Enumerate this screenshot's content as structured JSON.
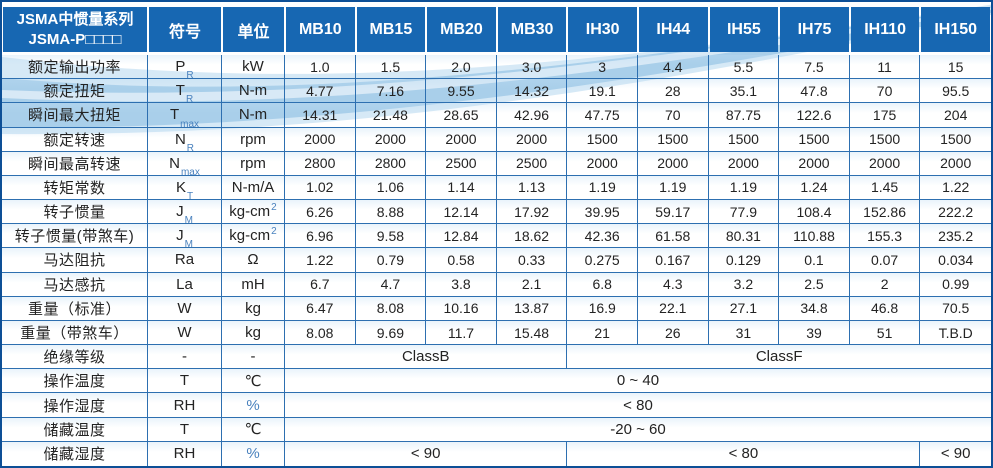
{
  "colors": {
    "header_blue": "#1767b2",
    "outer_border": "#0d4f96",
    "grid_line": "#2d6fb0",
    "wave_light": "#d4e8f6",
    "wave_mid": "#9dc8e7",
    "subscript_blue": "#4a82be"
  },
  "table": {
    "header": {
      "title_line1": "JSMA中惯量系列",
      "title_line2": "JSMA-P□□□□",
      "symbol_label": "符号",
      "unit_label": "单位",
      "models": [
        "MB10",
        "MB15",
        "MB20",
        "MB30",
        "IH30",
        "IH44",
        "IH55",
        "IH75",
        "IH110",
        "IH150"
      ]
    },
    "rows": [
      {
        "label": "额定输出功率",
        "symbol": "P",
        "sub": "R",
        "unit": "kW",
        "values": [
          "1.0",
          "1.5",
          "2.0",
          "3.0",
          "3",
          "4.4",
          "5.5",
          "7.5",
          "11",
          "15"
        ]
      },
      {
        "label": "额定扭矩",
        "symbol": "T",
        "sub": "R",
        "unit": "N-m",
        "values": [
          "4.77",
          "7.16",
          "9.55",
          "14.32",
          "19.1",
          "28",
          "35.1",
          "47.8",
          "70",
          "95.5"
        ]
      },
      {
        "label": "瞬间最大扭矩",
        "symbol": "T",
        "sub": "max",
        "unit": "N-m",
        "values": [
          "14.31",
          "21.48",
          "28.65",
          "42.96",
          "47.75",
          "70",
          "87.75",
          "122.6",
          "175",
          "204"
        ]
      },
      {
        "label": "额定转速",
        "symbol": "N",
        "sub": "R",
        "unit": "rpm",
        "values": [
          "2000",
          "2000",
          "2000",
          "2000",
          "1500",
          "1500",
          "1500",
          "1500",
          "1500",
          "1500"
        ]
      },
      {
        "label": "瞬间最高转速",
        "symbol": "N",
        "sub": "max",
        "unit": "rpm",
        "values": [
          "2800",
          "2800",
          "2500",
          "2500",
          "2000",
          "2000",
          "2000",
          "2000",
          "2000",
          "2000"
        ]
      },
      {
        "label": "转矩常数",
        "symbol": "K",
        "sub": "T",
        "unit": "N-m/A",
        "values": [
          "1.02",
          "1.06",
          "1.14",
          "1.13",
          "1.19",
          "1.19",
          "1.19",
          "1.24",
          "1.45",
          "1.22"
        ]
      },
      {
        "label": "转子惯量",
        "symbol": "J",
        "sub": "M",
        "unit": "kg-cm",
        "unit_sup": "2",
        "values": [
          "6.26",
          "8.88",
          "12.14",
          "17.92",
          "39.95",
          "59.17",
          "77.9",
          "108.4",
          "152.86",
          "222.2"
        ]
      },
      {
        "label": "转子惯量(带煞车)",
        "symbol": "J",
        "sub": "M",
        "unit": "kg-cm",
        "unit_sup": "2",
        "values": [
          "6.96",
          "9.58",
          "12.84",
          "18.62",
          "42.36",
          "61.58",
          "80.31",
          "110.88",
          "155.3",
          "235.2"
        ]
      },
      {
        "label": "马达阻抗",
        "symbol": "Ra",
        "sub": "",
        "unit": "Ω",
        "values": [
          "1.22",
          "0.79",
          "0.58",
          "0.33",
          "0.275",
          "0.167",
          "0.129",
          "0.1",
          "0.07",
          "0.034"
        ]
      },
      {
        "label": "马达感抗",
        "symbol": "La",
        "sub": "",
        "unit": "mH",
        "values": [
          "6.7",
          "4.7",
          "3.8",
          "2.1",
          "6.8",
          "4.3",
          "3.2",
          "2.5",
          "2",
          "0.99"
        ]
      },
      {
        "label": "重量（标准）",
        "symbol": "W",
        "sub": "",
        "unit": "kg",
        "values": [
          "6.47",
          "8.08",
          "10.16",
          "13.87",
          "16.9",
          "22.1",
          "27.1",
          "34.8",
          "46.8",
          "70.5"
        ]
      },
      {
        "label": "重量（带煞车）",
        "symbol": "W",
        "sub": "",
        "unit": "kg",
        "values": [
          "8.08",
          "9.69",
          "11.7",
          "15.48",
          "21",
          "26",
          "31",
          "39",
          "51",
          "T.B.D"
        ]
      },
      {
        "label": "绝缘等级",
        "symbol": "-",
        "sub": "",
        "unit": "-",
        "spans": [
          {
            "text": "ClassB",
            "cols": 4
          },
          {
            "text": "ClassF",
            "cols": 6
          }
        ]
      },
      {
        "label": "操作温度",
        "symbol": "T",
        "sub": "",
        "unit": "℃",
        "spans": [
          {
            "text": "0 ~ 40",
            "cols": 10
          }
        ]
      },
      {
        "label": "操作湿度",
        "symbol": "RH",
        "sub": "",
        "unit": "%",
        "spans": [
          {
            "text": "< 80",
            "cols": 10
          }
        ]
      },
      {
        "label": "储藏温度",
        "symbol": "T",
        "sub": "",
        "unit": "℃",
        "spans": [
          {
            "text": "-20 ~ 60",
            "cols": 10
          }
        ]
      },
      {
        "label": "储藏湿度",
        "symbol": "RH",
        "sub": "",
        "unit": "%",
        "spans": [
          {
            "text": "< 90",
            "cols": 4
          },
          {
            "text": "< 80",
            "cols": 5
          },
          {
            "text": "< 90",
            "cols": 1
          }
        ]
      }
    ]
  }
}
